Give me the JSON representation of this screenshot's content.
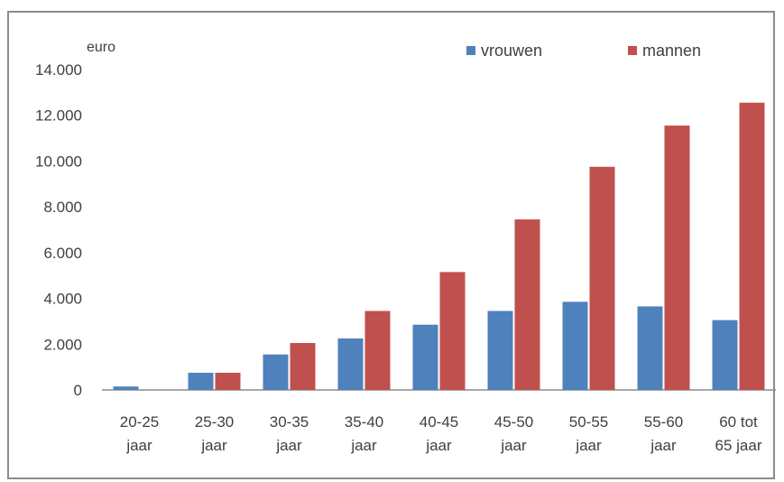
{
  "chart_data": {
    "type": "bar",
    "title": "",
    "unit_label": "euro",
    "xlabel": "",
    "ylabel": "",
    "ylim": [
      0,
      14000
    ],
    "yticks": [
      0,
      2000,
      4000,
      6000,
      8000,
      10000,
      12000,
      14000
    ],
    "ytick_labels": [
      "0",
      "2.000",
      "4.000",
      "6.000",
      "8.000",
      "10.000",
      "12.000",
      "14.000"
    ],
    "categories": [
      [
        "20-25",
        "jaar"
      ],
      [
        "25-30",
        "jaar"
      ],
      [
        "30-35",
        "jaar"
      ],
      [
        "35-40",
        "jaar"
      ],
      [
        "40-45",
        "jaar"
      ],
      [
        "45-50",
        "jaar"
      ],
      [
        "50-55",
        "jaar"
      ],
      [
        "55-60",
        "jaar"
      ],
      [
        "60 tot",
        "65 jaar"
      ]
    ],
    "series": [
      {
        "name": "vrouwen",
        "color": "#4f81bd",
        "values": [
          150,
          750,
          1550,
          2250,
          2850,
          3450,
          3850,
          3650,
          3050
        ]
      },
      {
        "name": "mannen",
        "color": "#c0504d",
        "values": [
          0,
          750,
          2050,
          3450,
          5150,
          7450,
          9750,
          11550,
          12550
        ]
      }
    ],
    "grid": false,
    "legend_position": "top-right"
  }
}
